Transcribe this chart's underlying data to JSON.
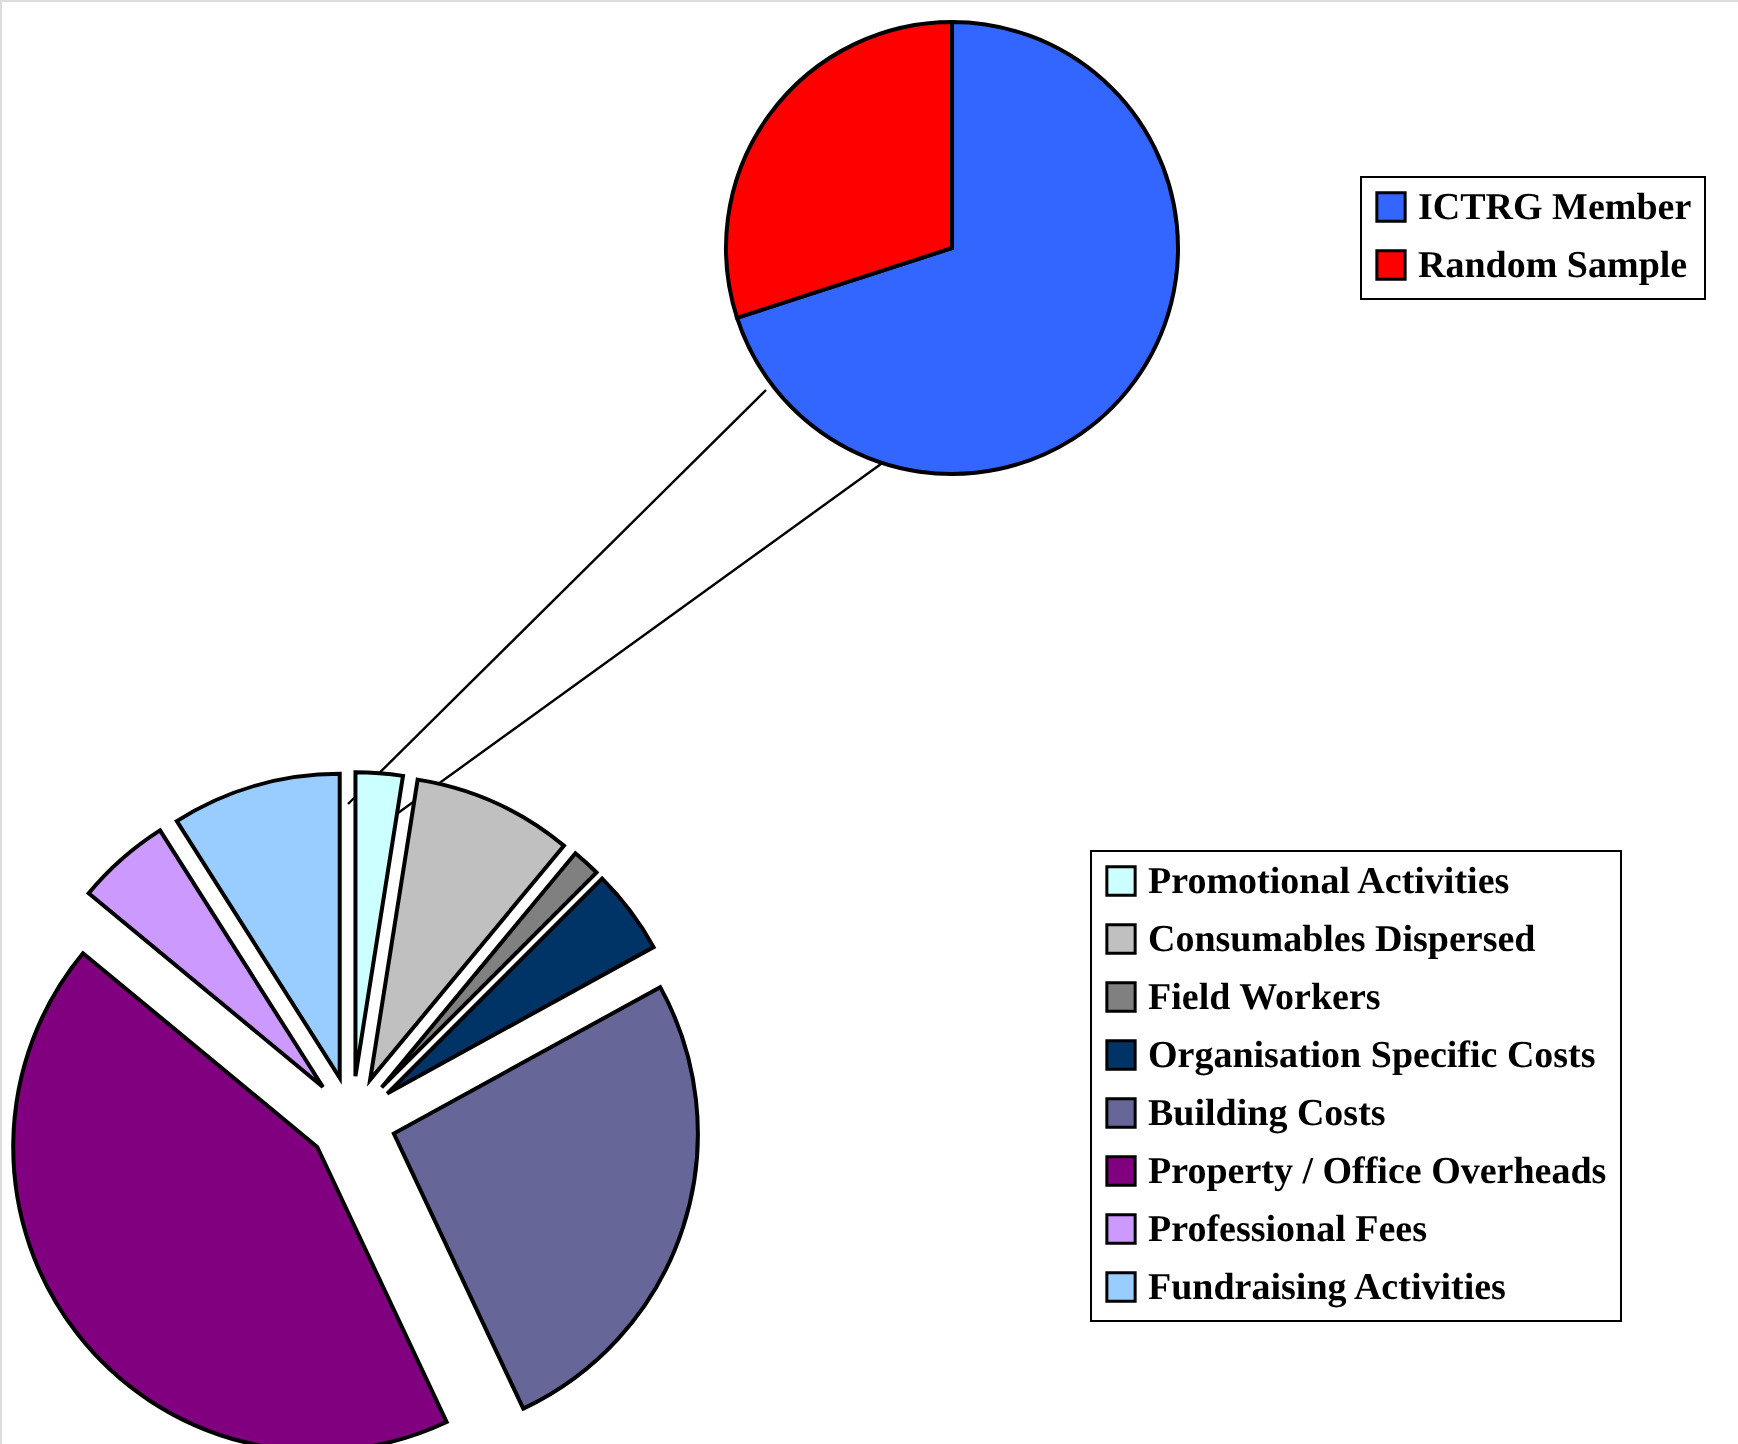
{
  "chart_data": [
    {
      "type": "pie",
      "categories": [
        "ICTRG Member",
        "Random Sample"
      ],
      "values": [
        70,
        30
      ],
      "colors": [
        "#3366ff",
        "#ff0000"
      ],
      "legend": "right"
    },
    {
      "type": "pie",
      "categories": [
        "Promotional Activities",
        "Consumables Dispersed",
        "Field Workers",
        "Organisation Specific Costs",
        "Building Costs",
        "Property / Office Overheads",
        "Professional Fees",
        "Fundraising Activities"
      ],
      "values": [
        2.5,
        8.5,
        1.5,
        4.5,
        26,
        43,
        5,
        9
      ],
      "colors": [
        "#ccffff",
        "#c0c0c0",
        "#808080",
        "#003366",
        "#666699",
        "#800080",
        "#cc99ff",
        "#99ccff"
      ],
      "legend": "right"
    }
  ]
}
